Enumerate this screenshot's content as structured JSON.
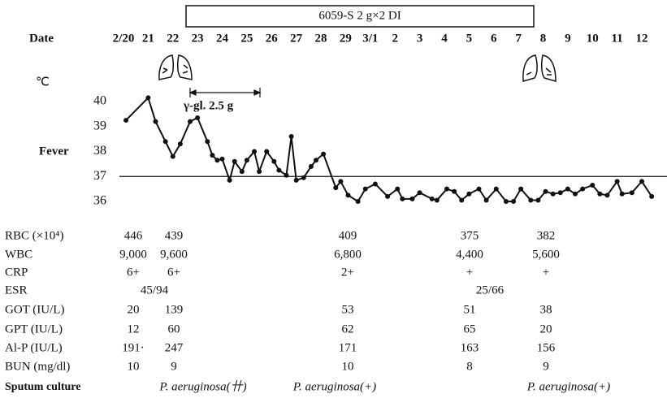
{
  "chart_data": {
    "type": "line",
    "drug_label": "6059-S 2 g×2 DI",
    "x_label": "Date",
    "y_label": "Fever",
    "y_unit": "℃",
    "annotation": "γ-gl. 2.5 g",
    "reference_line": 37,
    "xlim": [
      0,
      21
    ],
    "xticks": [
      {
        "value": 0,
        "label": "2/20"
      },
      {
        "value": 1,
        "label": "21"
      },
      {
        "value": 2,
        "label": "22"
      },
      {
        "value": 3,
        "label": "23"
      },
      {
        "value": 4,
        "label": "24"
      },
      {
        "value": 5,
        "label": "25"
      },
      {
        "value": 6,
        "label": "26"
      },
      {
        "value": 7,
        "label": "27"
      },
      {
        "value": 8,
        "label": "28"
      },
      {
        "value": 9,
        "label": "29"
      },
      {
        "value": 10,
        "label": "3/1"
      },
      {
        "value": 11,
        "label": "2"
      },
      {
        "value": 12,
        "label": "3"
      },
      {
        "value": 13,
        "label": "4"
      },
      {
        "value": 14,
        "label": "5"
      },
      {
        "value": 15,
        "label": "6"
      },
      {
        "value": 16,
        "label": "7"
      },
      {
        "value": 17,
        "label": "8"
      },
      {
        "value": 18,
        "label": "9"
      },
      {
        "value": 19,
        "label": "10"
      },
      {
        "value": 20,
        "label": "11"
      },
      {
        "value": 21,
        "label": "12"
      }
    ],
    "ylim": [
      36,
      40
    ],
    "yticks": [
      36,
      37,
      38,
      39,
      40
    ],
    "color": "#111111",
    "x": [
      0.1,
      1.0,
      1.3,
      1.7,
      2.0,
      2.3,
      2.7,
      3.0,
      3.4,
      3.6,
      3.8,
      4.0,
      4.3,
      4.5,
      4.8,
      5.0,
      5.3,
      5.5,
      5.8,
      6.1,
      6.3,
      6.6,
      6.8,
      7.0,
      7.3,
      7.6,
      7.8,
      8.1,
      8.6,
      8.8,
      9.1,
      9.5,
      9.8,
      10.2,
      10.7,
      11.1,
      11.3,
      11.7,
      12.0,
      12.5,
      12.7,
      13.1,
      13.4,
      13.7,
      14.0,
      14.4,
      14.7,
      15.1,
      15.5,
      15.8,
      16.1,
      16.5,
      16.8,
      17.1,
      17.4,
      17.7,
      18.0,
      18.3,
      18.6,
      19.0,
      19.3,
      19.6,
      20.0,
      20.2,
      20.6,
      21.0,
      21.4
    ],
    "values": [
      39.25,
      40.15,
      39.2,
      38.4,
      37.8,
      38.3,
      39.2,
      39.35,
      38.4,
      37.85,
      37.65,
      37.7,
      36.85,
      37.6,
      37.2,
      37.65,
      38.0,
      37.2,
      38.0,
      37.6,
      37.25,
      37.05,
      38.6,
      36.85,
      36.95,
      37.4,
      37.65,
      37.9,
      36.55,
      36.8,
      36.25,
      36.0,
      36.5,
      36.7,
      36.2,
      36.5,
      36.1,
      36.1,
      36.35,
      36.1,
      36.05,
      36.5,
      36.4,
      36.05,
      36.3,
      36.5,
      36.05,
      36.5,
      36.0,
      36.0,
      36.5,
      36.05,
      36.05,
      36.4,
      36.3,
      36.35,
      36.5,
      36.3,
      36.5,
      36.65,
      36.3,
      36.25,
      36.8,
      36.3,
      36.35,
      36.8,
      36.2
    ]
  },
  "lab_table": {
    "rows": [
      {
        "label": "RBC (×10⁴)",
        "cells": [
          "446",
          "439",
          "409",
          "375",
          "382"
        ]
      },
      {
        "label": "WBC",
        "cells": [
          "9,000",
          "9,600",
          "6,800",
          "4,400",
          "5,600"
        ]
      },
      {
        "label": "CRP",
        "cells": [
          "6+",
          "6+",
          "2+",
          "+",
          "+"
        ]
      },
      {
        "label": "ESR",
        "cells": [
          "45/94",
          "25/66"
        ]
      },
      {
        "label": "GOT (IU/L)",
        "cells": [
          "20",
          "139",
          "53",
          "51",
          "38"
        ]
      },
      {
        "label": "GPT (IU/L)",
        "cells": [
          "12",
          "60",
          "62",
          "65",
          "20"
        ]
      },
      {
        "label": "Al-P (IU/L)",
        "cells": [
          "191·",
          "247",
          "171",
          "163",
          "156"
        ]
      },
      {
        "label": "BUN (mg/dl)",
        "cells": [
          "10",
          "9",
          "10",
          "8",
          "9"
        ]
      },
      {
        "label": "Sputum culture",
        "cells": [
          "P. aeruginosa(卄)",
          "P. aeruginosa(+)",
          "P. aeruginosa(+)"
        ]
      }
    ]
  }
}
